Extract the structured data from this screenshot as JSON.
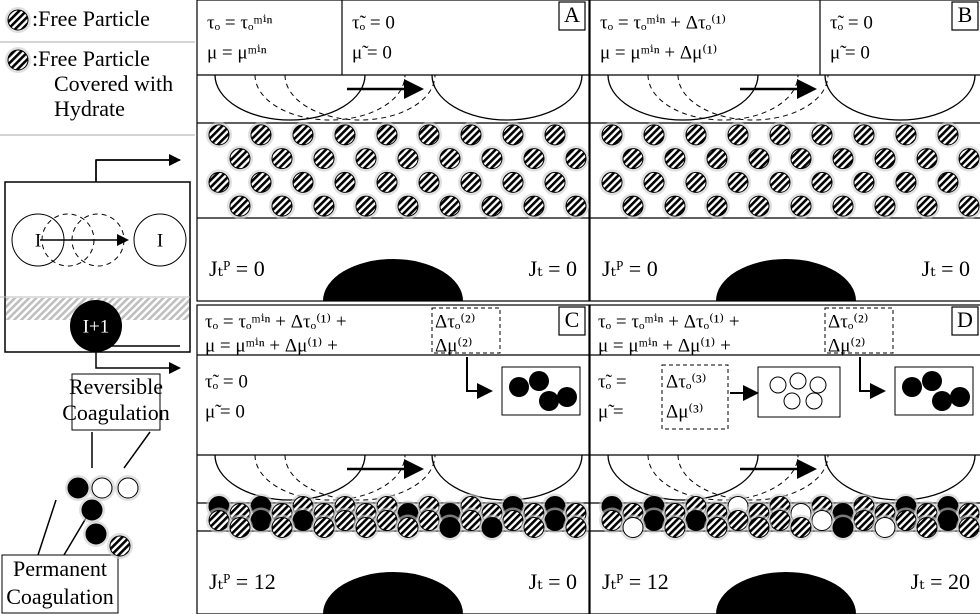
{
  "legend": {
    "free": ":Free Particle",
    "covered": [
      ":Free Particle",
      "Covered with",
      "Hydrate"
    ]
  },
  "diagram": {
    "node_left": "I",
    "node_right": "I",
    "node_bottom": "I+1"
  },
  "reversible": [
    "Reversible",
    "Coagulation"
  ],
  "permanent": [
    "Permanent",
    "Coagulation"
  ],
  "panels": [
    {
      "label": "A",
      "eq": [
        "τₒ = τₒᵐⁱⁿ",
        "μ = μᵐⁱⁿ"
      ],
      "tilde": [
        "τ̃ₒ = 0",
        "μ̃ = 0"
      ],
      "jp": "Jₜᴾ = 0",
      "jt": "Jₜ = 0"
    },
    {
      "label": "B",
      "eq": [
        "τₒ = τₒᵐⁱⁿ + Δτₒ⁽¹⁾",
        "μ = μᵐⁱⁿ + Δμ⁽¹⁾"
      ],
      "tilde": [
        "τ̃ₒ = 0",
        "μ̃ = 0"
      ],
      "jp": "Jₜᴾ = 0",
      "jt": "Jₜ = 0"
    },
    {
      "label": "C",
      "eq": [
        "τₒ = τₒᵐⁱⁿ + Δτₒ⁽¹⁾ +",
        "μ = μᵐⁱⁿ + Δμ⁽¹⁾ +"
      ],
      "boxed": [
        "Δτₒ⁽²⁾",
        "Δμ⁽²⁾"
      ],
      "tilde": [
        "τ̃ₒ = 0",
        "μ̃ = 0"
      ],
      "jp": "Jₜᴾ = 12",
      "jt": "Jₜ = 0"
    },
    {
      "label": "D",
      "eq": [
        "τₒ = τₒᵐⁱⁿ + Δτₒ⁽¹⁾ +",
        "μ = μᵐⁱⁿ + Δμ⁽¹⁾ +"
      ],
      "boxed": [
        "Δτₒ⁽²⁾",
        "Δμ⁽²⁾"
      ],
      "tilde": [
        "τ̃ₒ =",
        "μ̃ ="
      ],
      "tilde_boxed": [
        "Δτₒ⁽³⁾",
        "Δμ⁽³⁾"
      ],
      "jp": "Jₜᴾ = 12",
      "jt": "Jₜ = 20"
    }
  ]
}
